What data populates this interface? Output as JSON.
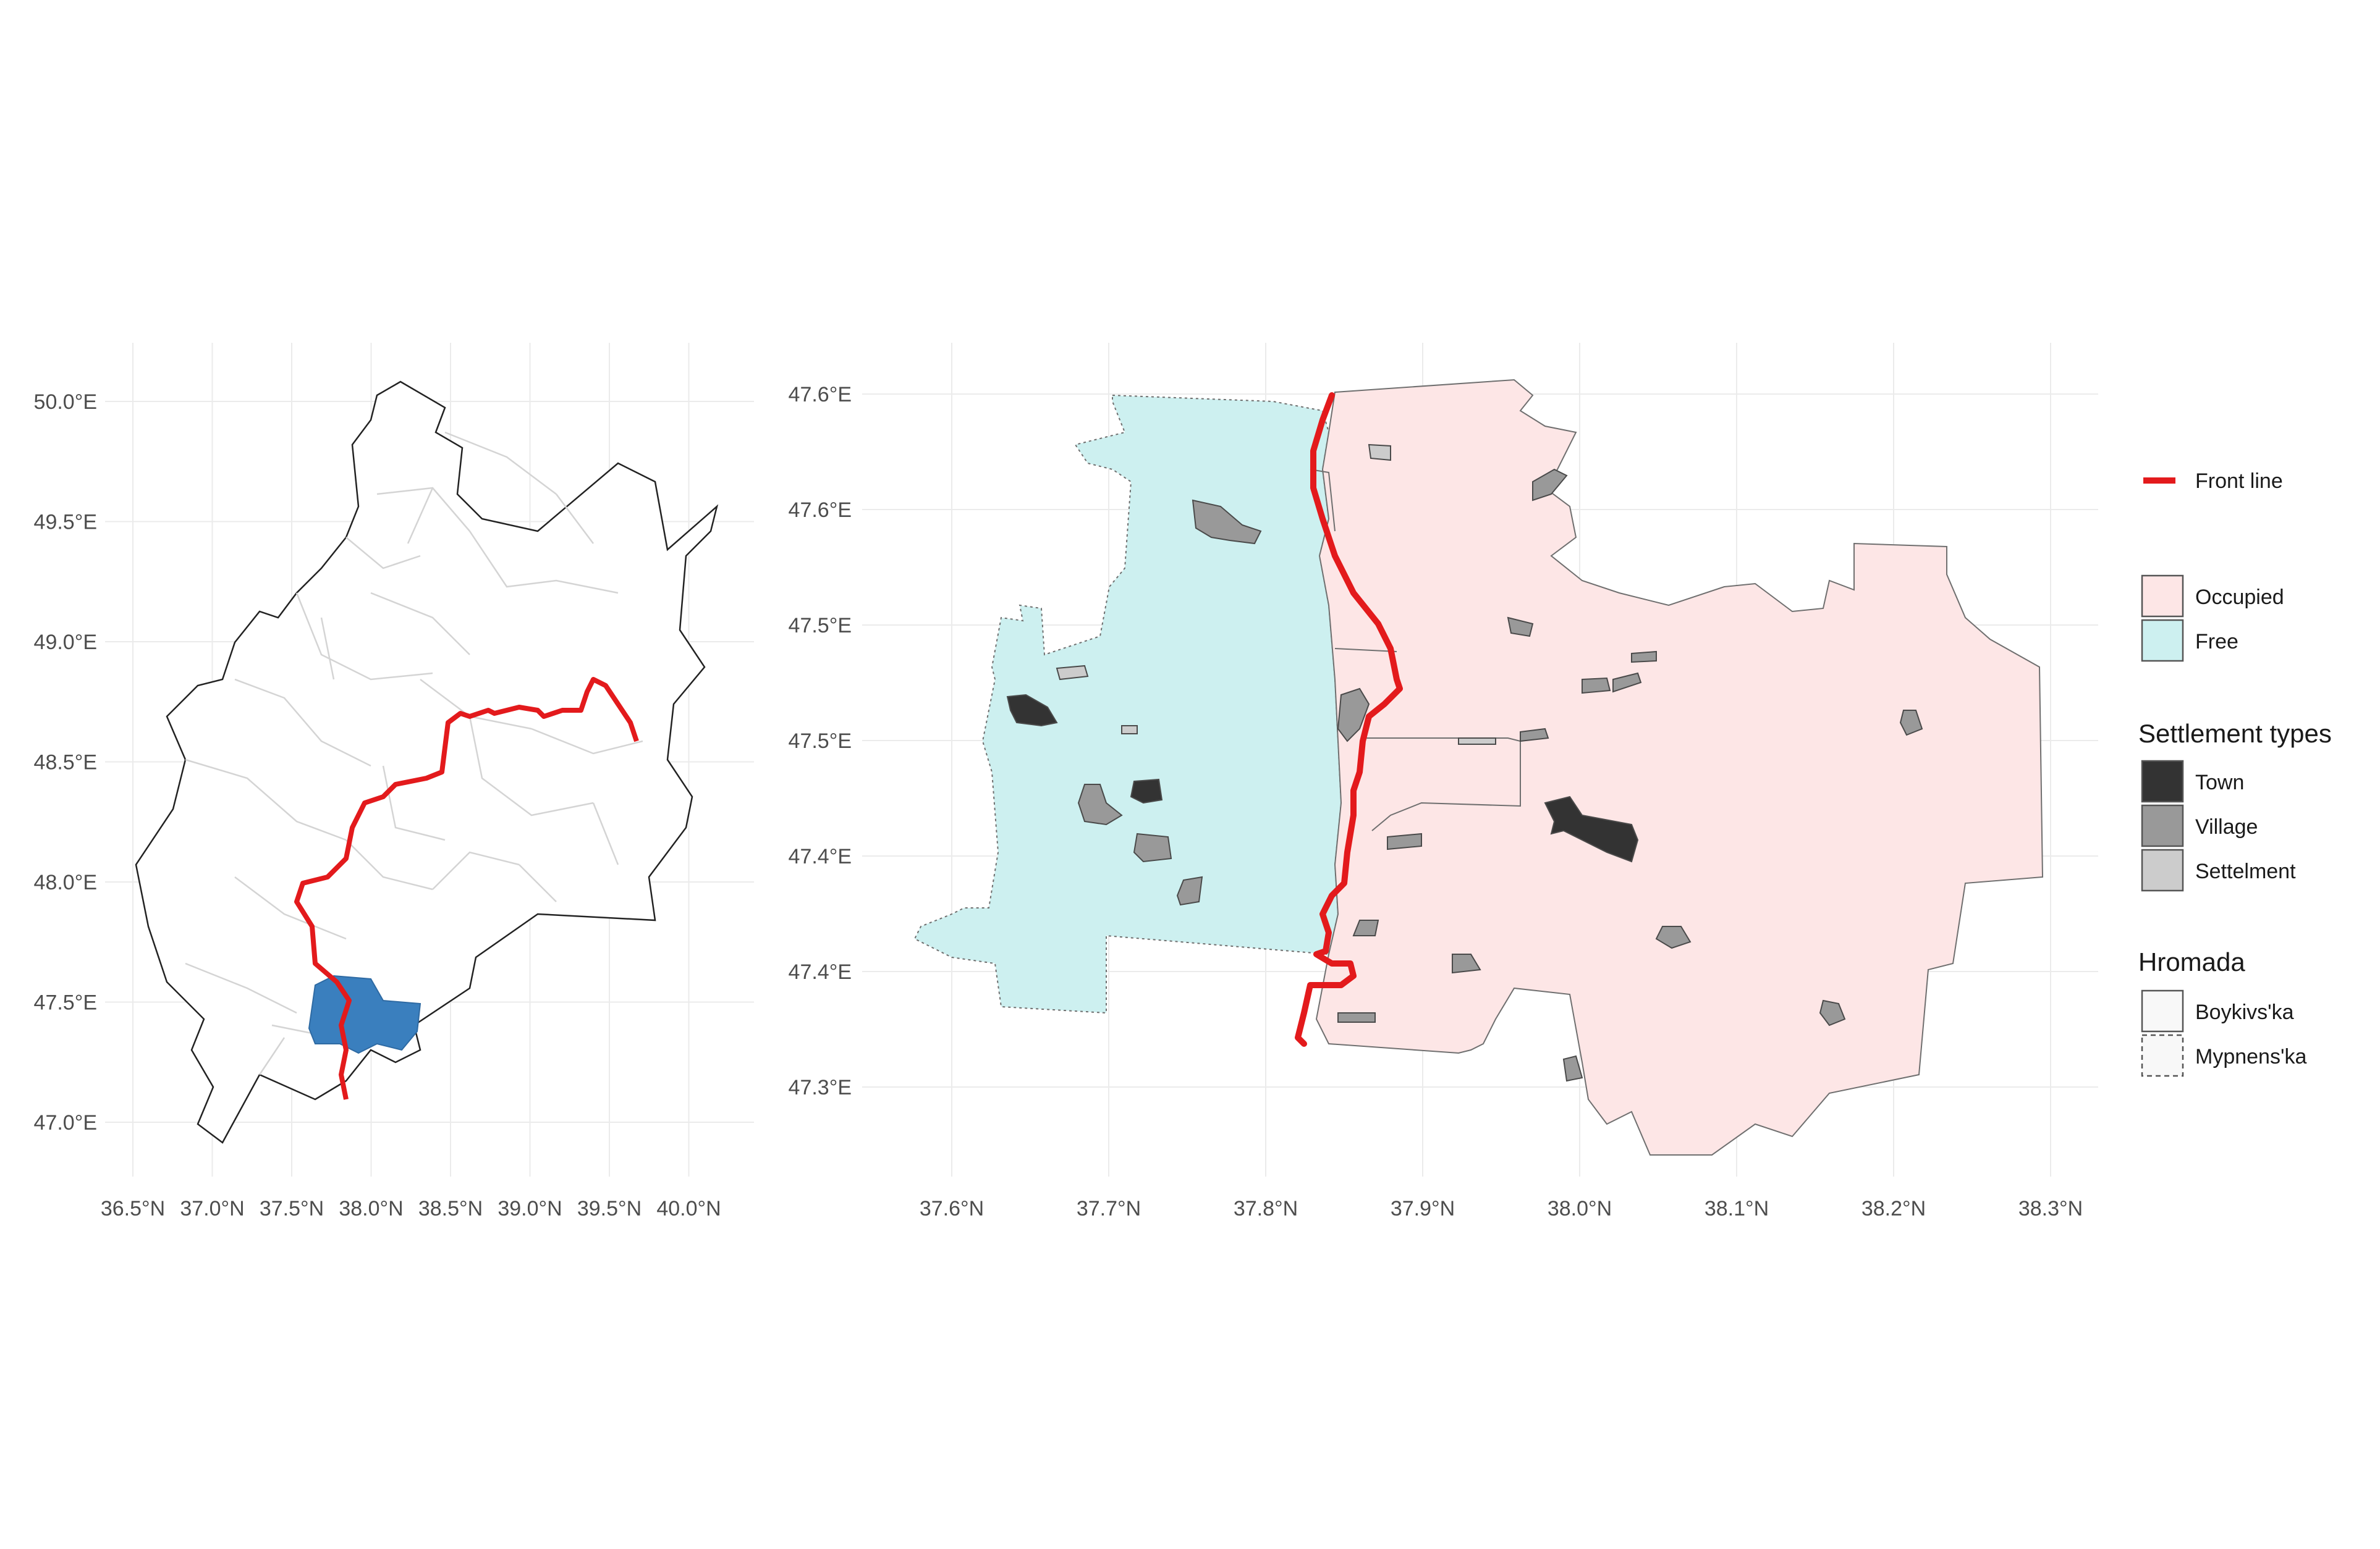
{
  "overview_map": {
    "x_ticks": [
      "36.5°N",
      "37.0°N",
      "37.5°N",
      "38.0°N",
      "38.5°N",
      "39.0°N",
      "39.5°N",
      "40.0°N"
    ],
    "y_ticks": [
      "50.0°E",
      "49.5°E",
      "49.0°E",
      "48.5°E",
      "48.0°E",
      "47.5°E",
      "47.0°E"
    ]
  },
  "detail_map": {
    "x_ticks": [
      "37.6°N",
      "37.7°N",
      "37.8°N",
      "37.9°N",
      "38.0°N",
      "38.1°N",
      "38.2°N",
      "38.3°N"
    ],
    "y_ticks": [
      "47.6°E",
      "47.6°E",
      "47.5°E",
      "47.5°E",
      "47.4°E",
      "47.4°E",
      "47.3°E"
    ]
  },
  "colors": {
    "front_line": "#e31a1c",
    "occupied": "#fde6e6",
    "free": "#cdf0f0",
    "highlight": "#3a7fbe",
    "town": "#333333",
    "village": "#999999",
    "settlement": "#cccccc"
  },
  "legend": {
    "front_line_label": "Front line",
    "status_items": [
      {
        "label": "Occupied",
        "color": "#fde6e6"
      },
      {
        "label": "Free",
        "color": "#cdf0f0"
      }
    ],
    "settlement_title": "Settlement types",
    "settlement_items": [
      {
        "label": "Town",
        "color": "#333333"
      },
      {
        "label": "Village",
        "color": "#999999"
      },
      {
        "label": "Settelment",
        "color": "#cccccc"
      }
    ],
    "hromada_title": "Hromada",
    "hromada_items": [
      {
        "label": "Boykivs'ka",
        "line": "solid"
      },
      {
        "label": "Mypnens'ka",
        "line": "dashed"
      }
    ]
  }
}
